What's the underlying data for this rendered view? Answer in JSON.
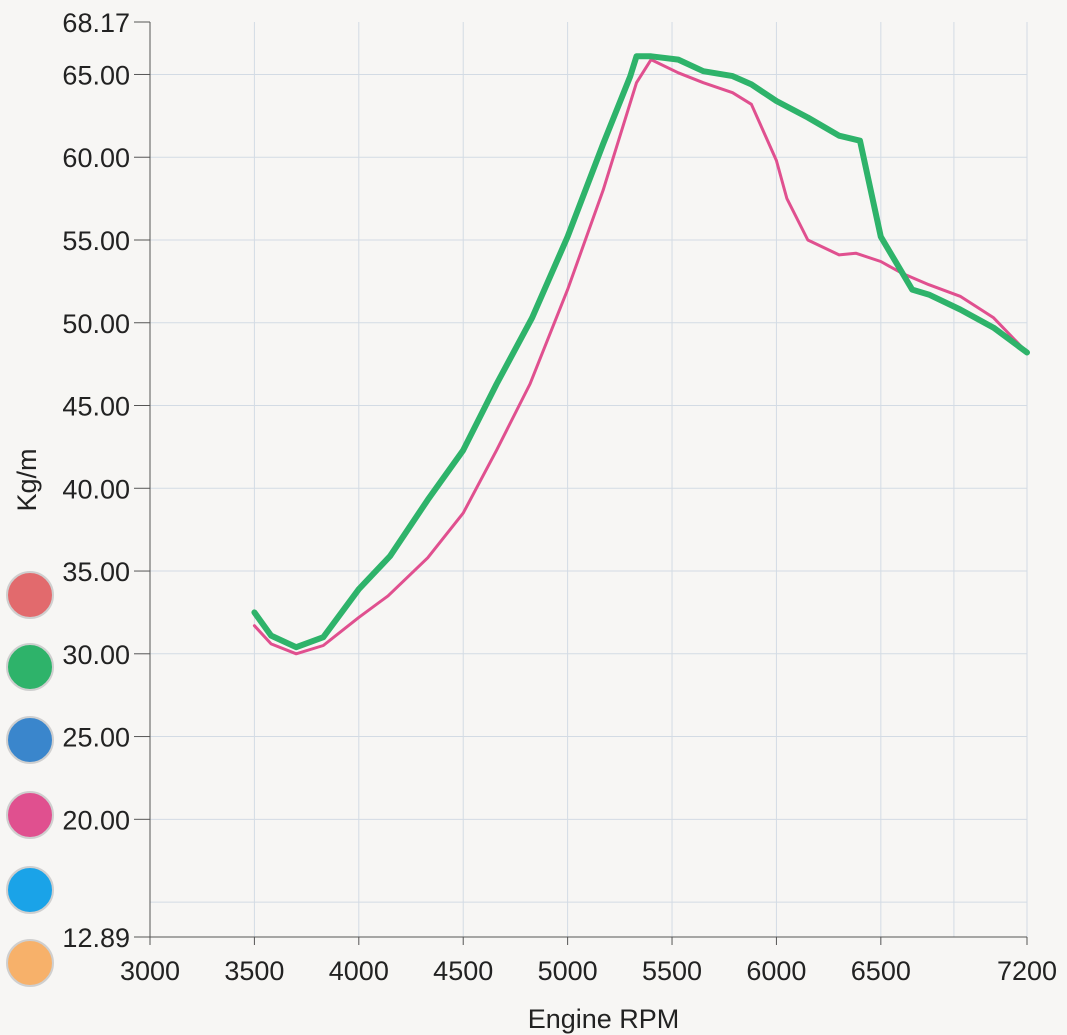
{
  "chart_data": {
    "type": "line",
    "xlabel": "Engine RPM",
    "ylabel": "Kg/m",
    "xlim": [
      3000,
      7200
    ],
    "ylim": [
      12.89,
      68.17
    ],
    "x_ticks": [
      3000,
      3500,
      4000,
      4500,
      5000,
      5500,
      6000,
      6500,
      7200
    ],
    "x_tick_labels": [
      "3000",
      "3500",
      "4000",
      "4500",
      "5000",
      "5500",
      "6000",
      "6500",
      "7200"
    ],
    "x_grid": [
      3500,
      4000,
      4500,
      5000,
      5500,
      6000,
      6500,
      6850,
      7200
    ],
    "y_ticks": [
      12.89,
      20.0,
      25.0,
      30.0,
      35.0,
      40.0,
      45.0,
      50.0,
      55.0,
      60.0,
      65.0,
      68.17
    ],
    "y_tick_labels": [
      "12.89",
      "20.00",
      "25.00",
      "30.00",
      "35.00",
      "40.00",
      "45.00",
      "50.00",
      "55.00",
      "60.00",
      "65.00",
      "68.17"
    ],
    "y_grid": [
      15.0,
      20.0,
      25.0,
      30.0,
      35.0,
      40.0,
      45.0,
      50.0,
      55.0,
      60.0,
      65.0
    ],
    "grid": true,
    "series": [
      {
        "color": "#e0508f",
        "width": 3,
        "x": [
          3500,
          3580,
          3700,
          3830,
          4000,
          4140,
          4330,
          4500,
          4660,
          4820,
          5000,
          5170,
          5330,
          5400,
          5530,
          5650,
          5790,
          5880,
          6000,
          6050,
          6150,
          6300,
          6380,
          6500,
          6600,
          6730,
          6880,
          7040,
          7200
        ],
        "y": [
          31.7,
          30.6,
          30.0,
          30.5,
          32.2,
          33.5,
          35.8,
          38.5,
          42.3,
          46.3,
          52.0,
          58.0,
          64.5,
          65.9,
          65.1,
          64.5,
          63.9,
          63.2,
          59.8,
          57.5,
          55.0,
          54.1,
          54.2,
          53.7,
          53.0,
          52.3,
          51.6,
          50.3,
          48.2
        ]
      },
      {
        "color": "#2eb36a",
        "width": 6,
        "x": [
          3500,
          3580,
          3700,
          3830,
          4000,
          4150,
          4330,
          4500,
          4660,
          4830,
          5000,
          5170,
          5300,
          5330,
          5400,
          5530,
          5650,
          5790,
          5880,
          6000,
          6150,
          6300,
          6400,
          6500,
          6650,
          6730,
          6880,
          7040,
          7200
        ],
        "y": [
          32.5,
          31.1,
          30.4,
          31.0,
          33.9,
          35.9,
          39.3,
          42.3,
          46.3,
          50.3,
          55.2,
          60.8,
          64.9,
          66.1,
          66.1,
          65.9,
          65.2,
          64.9,
          64.4,
          63.4,
          62.4,
          61.3,
          61.0,
          55.2,
          52.0,
          51.7,
          50.8,
          49.7,
          48.2
        ]
      }
    ],
    "legend": {
      "placement": "left",
      "colors": [
        "#e26a6d",
        "#2eb36a",
        "#3a86cc",
        "#e0508f",
        "#1aa3e8",
        "#f7b16a"
      ]
    }
  }
}
